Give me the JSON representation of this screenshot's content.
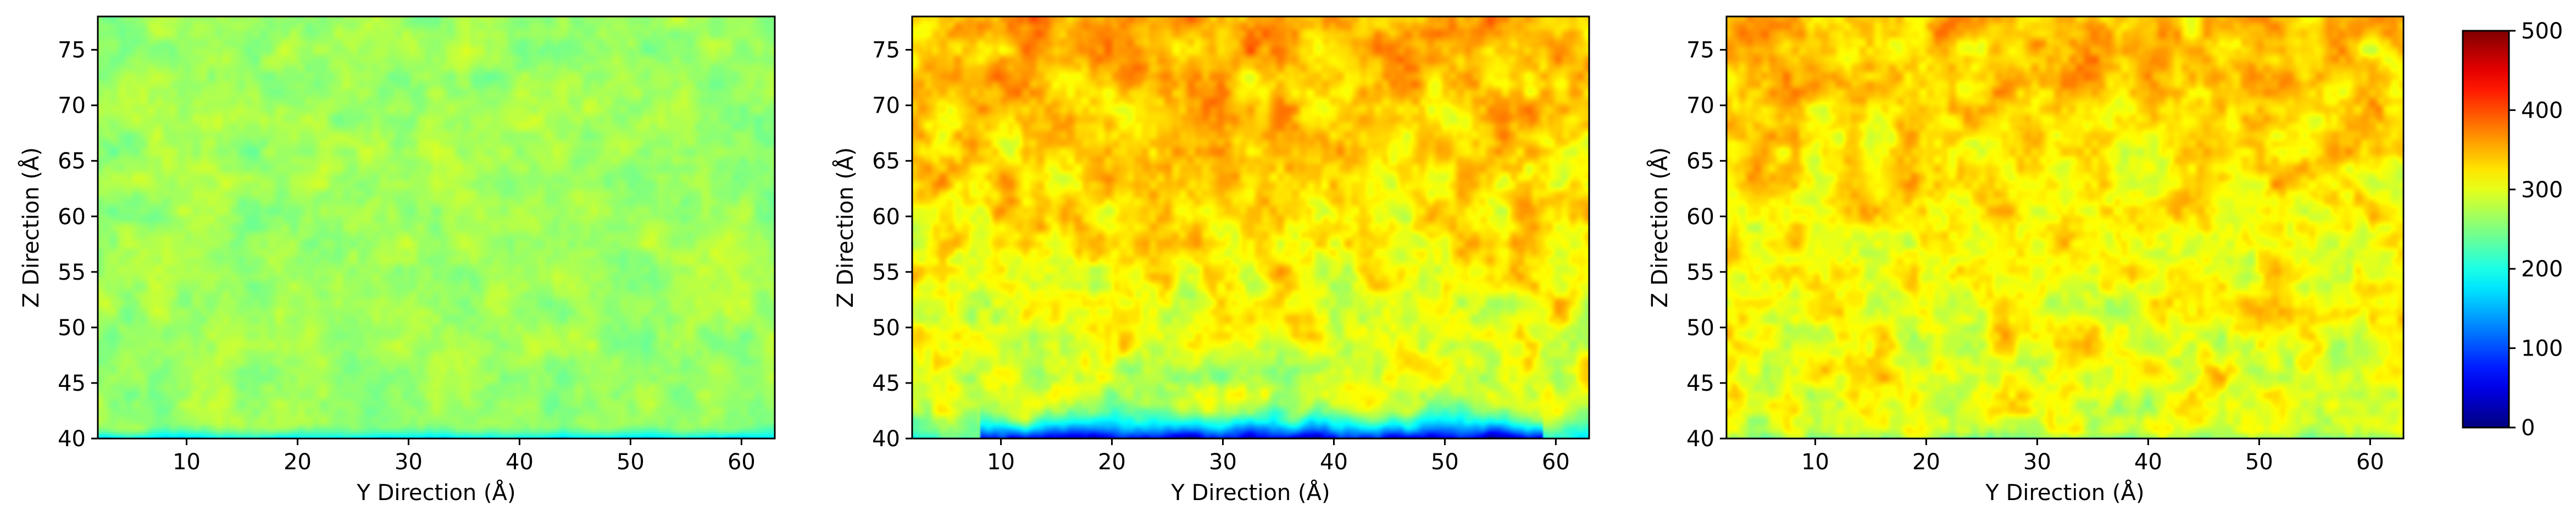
{
  "chart_data": [
    {
      "type": "heatmap",
      "xlabel": "Y Direction (Å)",
      "ylabel": "Z Direction (Å)",
      "xlim": [
        2,
        63
      ],
      "ylim": [
        40,
        78
      ],
      "xticks": [
        10,
        20,
        30,
        40,
        50,
        60
      ],
      "yticks": [
        40,
        45,
        50,
        55,
        60,
        65,
        70,
        75
      ],
      "colormap": "jet",
      "value_range": [
        0,
        500
      ],
      "base_value": 265,
      "variation": 30,
      "seed": 7,
      "bottom_low": {
        "depth": 0.8,
        "strength": 90
      }
    },
    {
      "type": "heatmap",
      "xlabel": "Y Direction (Å)",
      "ylabel": "Z Direction (Å)",
      "xlim": [
        2,
        63
      ],
      "ylim": [
        40,
        78
      ],
      "xticks": [
        10,
        20,
        30,
        40,
        50,
        60
      ],
      "yticks": [
        40,
        45,
        50,
        55,
        60,
        65,
        70,
        75
      ],
      "colormap": "jet",
      "value_range": [
        0,
        500
      ],
      "base_value": 320,
      "variation": 55,
      "top_gradient": 70,
      "seed": 19,
      "bottom_low": {
        "depth": 2.2,
        "strength": 260,
        "from_y": 8,
        "to_y": 59
      }
    },
    {
      "type": "heatmap",
      "xlabel": "Y Direction (Å)",
      "ylabel": "Z Direction (Å)",
      "xlim": [
        2,
        63
      ],
      "ylim": [
        40,
        78
      ],
      "xticks": [
        10,
        20,
        30,
        40,
        50,
        60
      ],
      "yticks": [
        40,
        45,
        50,
        55,
        60,
        65,
        70,
        75
      ],
      "colormap": "jet",
      "value_range": [
        0,
        500
      ],
      "base_value": 320,
      "variation": 55,
      "top_gradient": 40,
      "seed": 31,
      "bottom_low": {
        "depth": 0.6,
        "strength": 40
      }
    }
  ],
  "colorbar": {
    "colormap": "jet",
    "range": [
      0,
      500
    ],
    "ticks": [
      0,
      100,
      200,
      300,
      400,
      500
    ]
  }
}
